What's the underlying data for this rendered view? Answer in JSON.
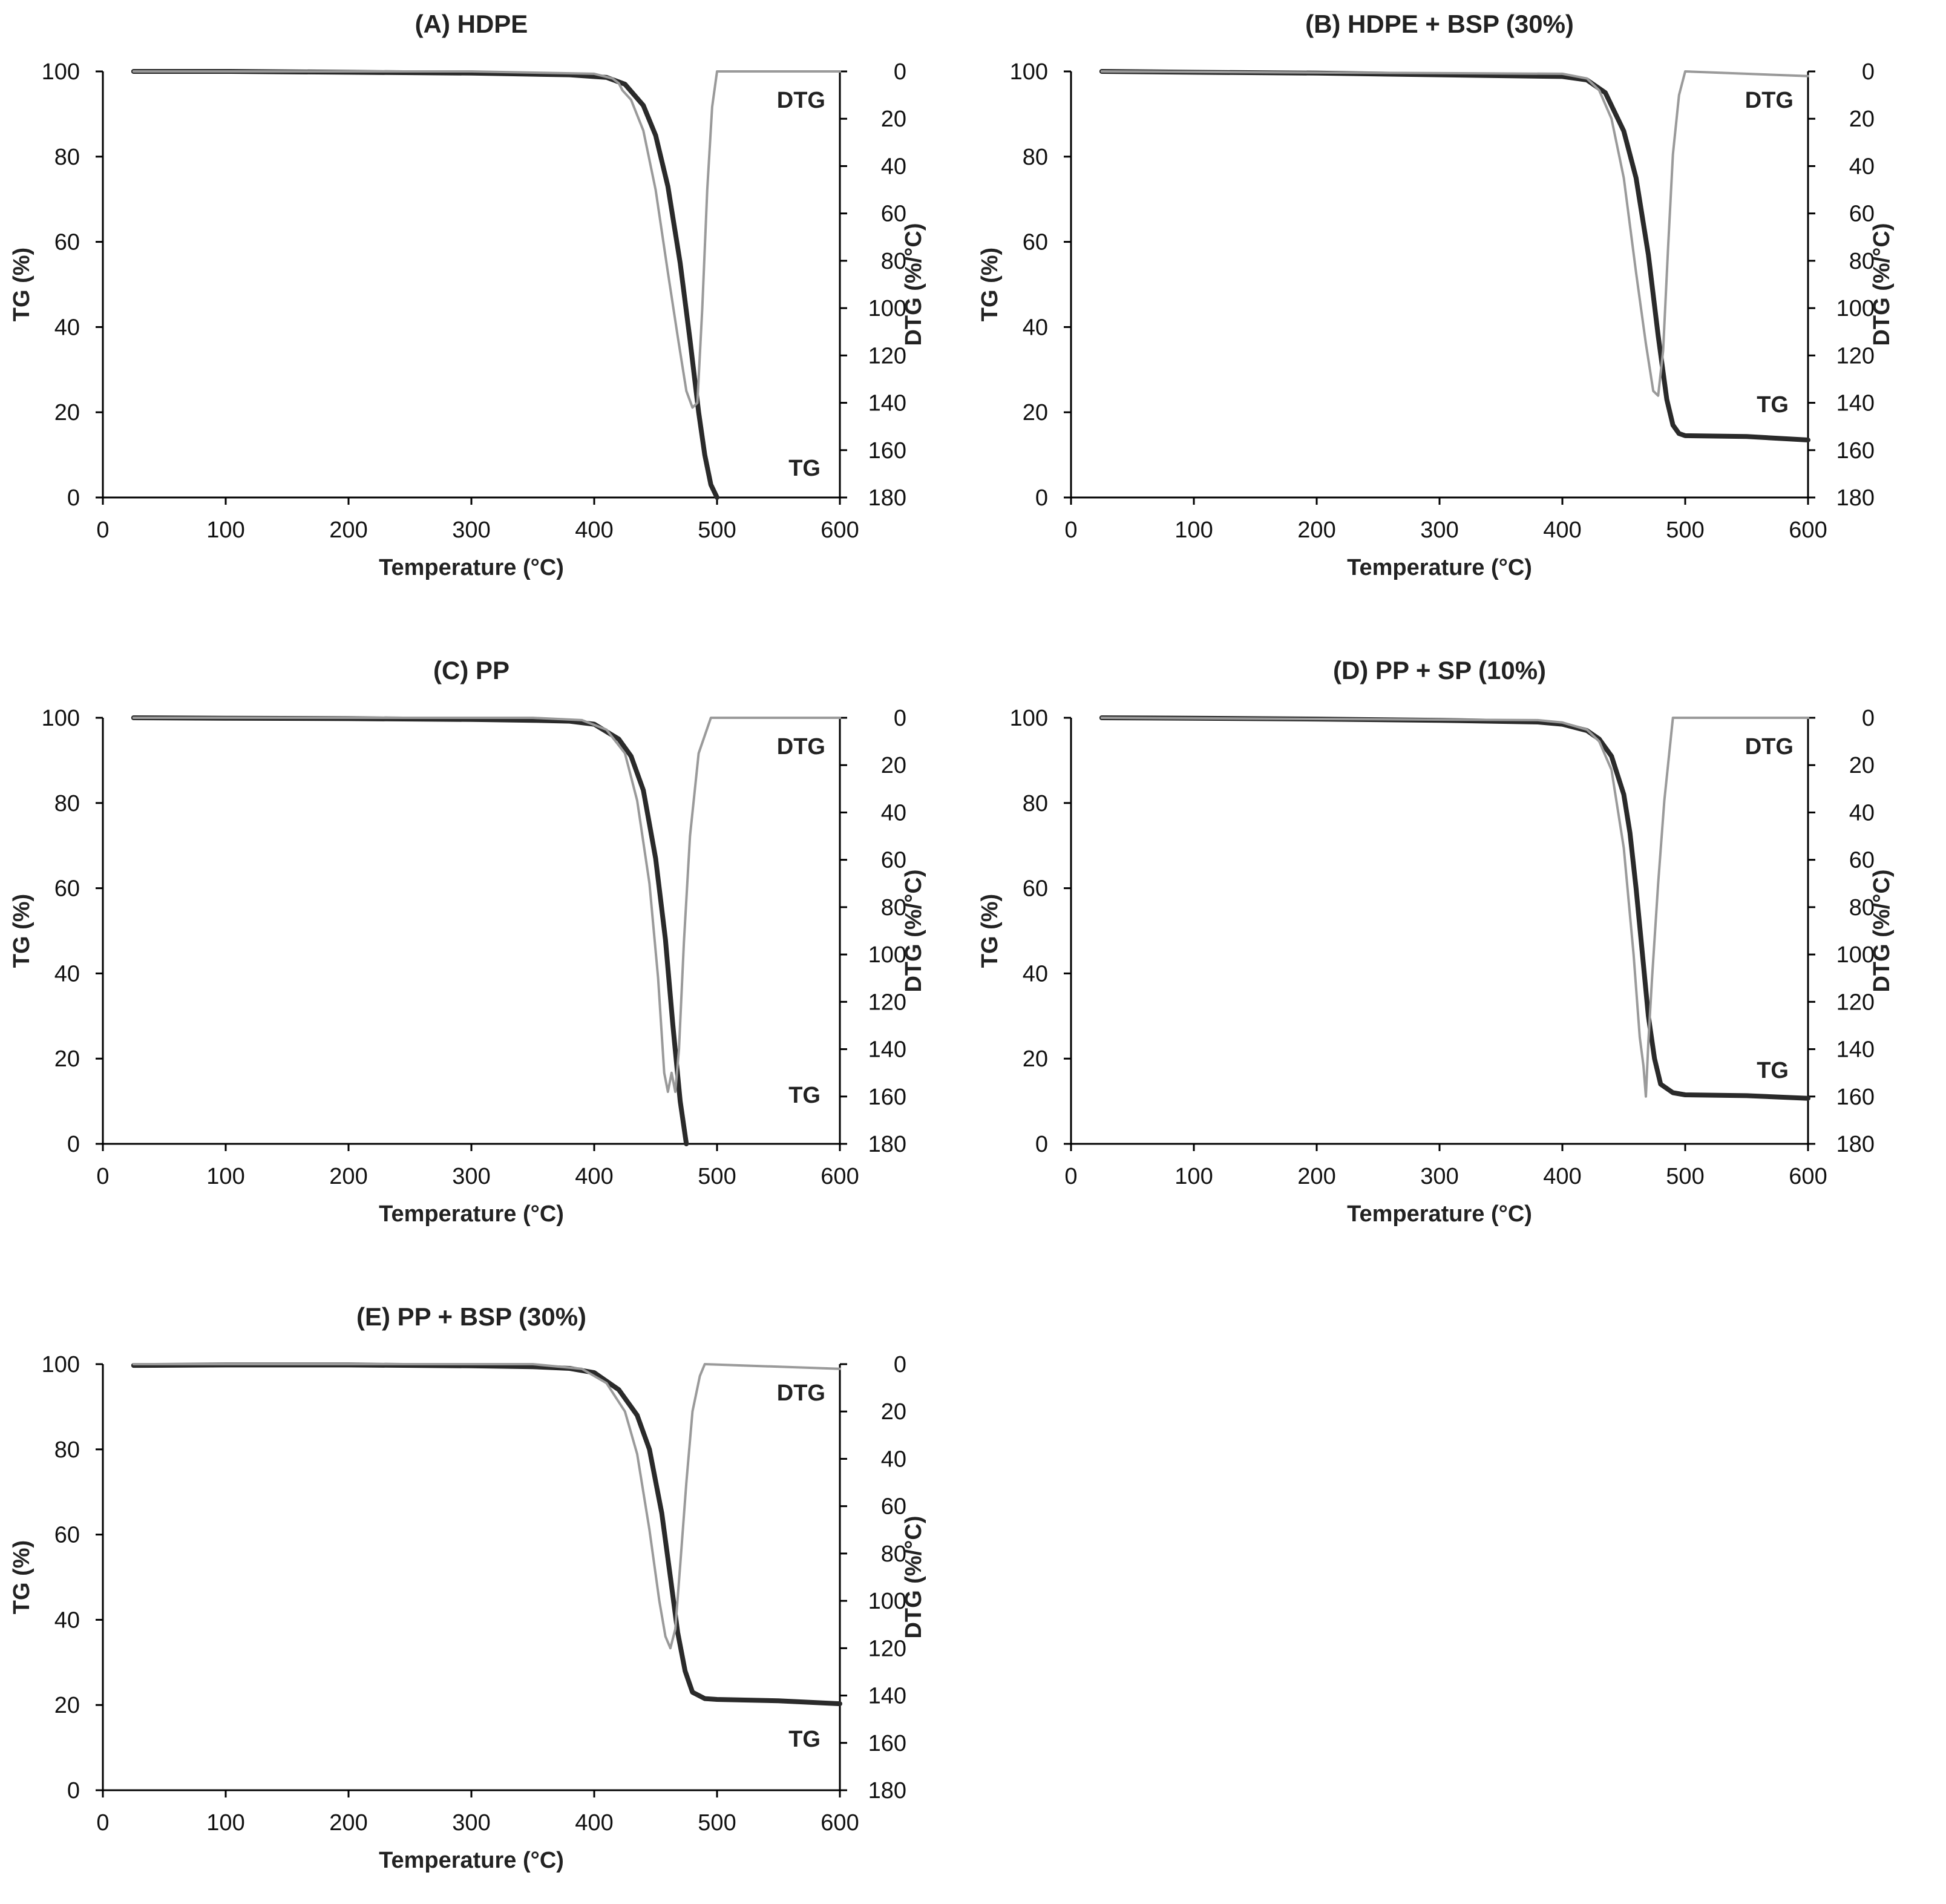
{
  "figure_settings": {
    "tg_color": "#2a2a2a",
    "dtg_color": "#9a9a9a",
    "axis_color": "#000000"
  },
  "chart_data": [
    {
      "type": "line",
      "title": "(A) HDPE",
      "xlabel": "Temperature (°C)",
      "ylabel": "TG (%)",
      "y2label": "DTG (%/°C)",
      "xlim": [
        0,
        600
      ],
      "ylim": [
        0,
        100
      ],
      "y2lim": [
        0,
        180
      ],
      "y2_inverted": true,
      "xticks": [
        0,
        100,
        200,
        300,
        400,
        500,
        600
      ],
      "yticks": [
        0,
        20,
        40,
        60,
        80,
        100
      ],
      "y2ticks": [
        0,
        20,
        40,
        60,
        80,
        100,
        120,
        140,
        160,
        180
      ],
      "grid": false,
      "curve_labels": {
        "dtg": "DTG",
        "tg": "TG"
      },
      "series": [
        {
          "name": "TG",
          "axis": "left",
          "x": [
            25,
            100,
            200,
            300,
            380,
            410,
            425,
            440,
            450,
            460,
            470,
            478,
            485,
            490,
            495,
            500
          ],
          "y": [
            100,
            100,
            99.8,
            99.6,
            99.2,
            98.6,
            97,
            92,
            85,
            73,
            55,
            37,
            20,
            10,
            3,
            0
          ]
        },
        {
          "name": "DTG",
          "axis": "right",
          "x": [
            25,
            300,
            400,
            415,
            420,
            423,
            430,
            440,
            450,
            460,
            468,
            475,
            480,
            484,
            488,
            492,
            496,
            500,
            600
          ],
          "y": [
            0,
            0,
            1,
            3,
            5,
            8,
            12,
            25,
            50,
            85,
            112,
            135,
            142,
            140,
            100,
            50,
            15,
            0,
            0
          ]
        }
      ]
    },
    {
      "type": "line",
      "title": "(B) HDPE + BSP (30%)",
      "xlabel": "Temperature (°C)",
      "ylabel": "TG (%)",
      "y2label": "DTG (%/°C)",
      "xlim": [
        0,
        600
      ],
      "ylim": [
        0,
        100
      ],
      "y2lim": [
        0,
        180
      ],
      "y2_inverted": true,
      "xticks": [
        0,
        100,
        200,
        300,
        400,
        500,
        600
      ],
      "yticks": [
        0,
        20,
        40,
        60,
        80,
        100
      ],
      "y2ticks": [
        0,
        20,
        40,
        60,
        80,
        100,
        120,
        140,
        160,
        180
      ],
      "grid": false,
      "curve_labels": {
        "dtg": "DTG",
        "tg": "TG"
      },
      "series": [
        {
          "name": "TG",
          "axis": "left",
          "x": [
            25,
            100,
            200,
            300,
            400,
            420,
            435,
            450,
            460,
            470,
            478,
            485,
            490,
            495,
            500,
            550,
            600
          ],
          "y": [
            100,
            99.8,
            99.6,
            99.2,
            98.8,
            98,
            95,
            86,
            75,
            57,
            38,
            23,
            17,
            15,
            14.5,
            14.3,
            13.5
          ]
        },
        {
          "name": "DTG",
          "axis": "right",
          "x": [
            25,
            400,
            420,
            430,
            440,
            450,
            460,
            468,
            474,
            478,
            482,
            486,
            490,
            495,
            500,
            600
          ],
          "y": [
            0,
            1,
            3,
            8,
            20,
            45,
            85,
            115,
            135,
            137,
            118,
            75,
            35,
            10,
            0,
            2
          ]
        }
      ]
    },
    {
      "type": "line",
      "title": "(C) PP",
      "xlabel": "Temperature (°C)",
      "ylabel": "TG (%)",
      "y2label": "DTG (%/°C)",
      "xlim": [
        0,
        600
      ],
      "ylim": [
        0,
        100
      ],
      "y2lim": [
        0,
        180
      ],
      "y2_inverted": true,
      "xticks": [
        0,
        100,
        200,
        300,
        400,
        500,
        600
      ],
      "yticks": [
        0,
        20,
        40,
        60,
        80,
        100
      ],
      "y2ticks": [
        0,
        20,
        40,
        60,
        80,
        100,
        120,
        140,
        160,
        180
      ],
      "grid": false,
      "curve_labels": {
        "dtg": "DTG",
        "tg": "TG"
      },
      "series": [
        {
          "name": "TG",
          "axis": "left",
          "x": [
            25,
            100,
            200,
            300,
            350,
            380,
            400,
            420,
            430,
            440,
            450,
            458,
            464,
            470,
            475
          ],
          "y": [
            100,
            99.9,
            99.8,
            99.6,
            99.4,
            99.2,
            98.5,
            95,
            91,
            83,
            67,
            48,
            28,
            10,
            0
          ]
        },
        {
          "name": "DTG",
          "axis": "right",
          "x": [
            25,
            350,
            390,
            410,
            425,
            435,
            445,
            452,
            457,
            460,
            463,
            466,
            469,
            473,
            478,
            485,
            495,
            600
          ],
          "y": [
            0,
            0,
            1,
            5,
            15,
            35,
            70,
            110,
            150,
            158,
            150,
            158,
            140,
            95,
            50,
            15,
            0,
            0
          ]
        }
      ]
    },
    {
      "type": "line",
      "title": "(D) PP + SP (10%)",
      "xlabel": "Temperature (°C)",
      "ylabel": "TG (%)",
      "y2label": "DTG (%/°C)",
      "xlim": [
        0,
        600
      ],
      "ylim": [
        0,
        100
      ],
      "y2lim": [
        0,
        180
      ],
      "y2_inverted": true,
      "xticks": [
        0,
        100,
        200,
        300,
        400,
        500,
        600
      ],
      "yticks": [
        0,
        20,
        40,
        60,
        80,
        100
      ],
      "y2ticks": [
        0,
        20,
        40,
        60,
        80,
        100,
        120,
        140,
        160,
        180
      ],
      "grid": false,
      "curve_labels": {
        "dtg": "DTG",
        "tg": "TG"
      },
      "series": [
        {
          "name": "TG",
          "axis": "left",
          "x": [
            25,
            100,
            200,
            300,
            380,
            400,
            420,
            430,
            440,
            450,
            455,
            460,
            465,
            470,
            475,
            480,
            490,
            500,
            550,
            600
          ],
          "y": [
            100,
            99.9,
            99.7,
            99.4,
            99,
            98.5,
            97,
            95,
            91,
            82,
            73,
            60,
            45,
            30,
            20,
            14,
            12,
            11.5,
            11.3,
            10.7
          ]
        },
        {
          "name": "DTG",
          "axis": "right",
          "x": [
            25,
            380,
            400,
            420,
            430,
            440,
            450,
            458,
            463,
            466,
            468,
            470,
            473,
            478,
            483,
            490,
            600
          ],
          "y": [
            0,
            1,
            2,
            5,
            10,
            22,
            55,
            100,
            135,
            147,
            160,
            137,
            110,
            70,
            35,
            0,
            0
          ]
        }
      ]
    },
    {
      "type": "line",
      "title": "(E) PP + BSP (30%)",
      "xlabel": "Temperature (°C)",
      "ylabel": "TG (%)",
      "y2label": "DTG (%/°C)",
      "xlim": [
        0,
        600
      ],
      "ylim": [
        0,
        100
      ],
      "y2lim": [
        0,
        180
      ],
      "y2_inverted": true,
      "xticks": [
        0,
        100,
        200,
        300,
        400,
        500,
        600
      ],
      "yticks": [
        0,
        20,
        40,
        60,
        80,
        100
      ],
      "y2ticks": [
        0,
        20,
        40,
        60,
        80,
        100,
        120,
        140,
        160,
        180
      ],
      "grid": false,
      "curve_labels": {
        "dtg": "DTG",
        "tg": "TG"
      },
      "series": [
        {
          "name": "TG",
          "axis": "left",
          "x": [
            25,
            100,
            200,
            300,
            350,
            380,
            400,
            420,
            435,
            445,
            455,
            462,
            468,
            474,
            480,
            490,
            500,
            550,
            600
          ],
          "y": [
            99.7,
            99.8,
            99.8,
            99.6,
            99.4,
            99,
            98,
            94,
            88,
            80,
            65,
            50,
            37,
            28,
            23,
            21.5,
            21.3,
            21,
            20.3
          ]
        },
        {
          "name": "DTG",
          "axis": "right",
          "x": [
            25,
            350,
            390,
            410,
            425,
            435,
            445,
            453,
            458,
            462,
            466,
            470,
            475,
            480,
            486,
            490,
            600
          ],
          "y": [
            0,
            0,
            2,
            8,
            20,
            38,
            70,
            100,
            115,
            120,
            112,
            85,
            50,
            20,
            5,
            0,
            2
          ]
        }
      ]
    }
  ]
}
